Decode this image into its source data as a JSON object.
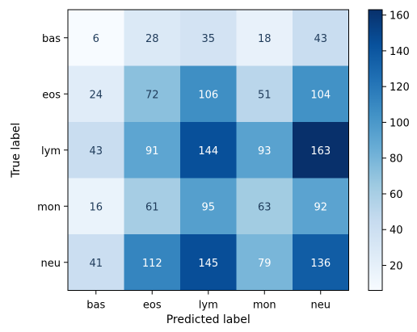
{
  "chart_data": {
    "type": "heatmap",
    "title": "",
    "xlabel": "Predicted label",
    "ylabel": "True label",
    "x_categories": [
      "bas",
      "eos",
      "lym",
      "mon",
      "neu"
    ],
    "y_categories": [
      "bas",
      "eos",
      "lym",
      "mon",
      "neu"
    ],
    "values": [
      [
        6,
        28,
        35,
        18,
        43
      ],
      [
        24,
        72,
        106,
        51,
        104
      ],
      [
        43,
        91,
        144,
        93,
        163
      ],
      [
        16,
        61,
        95,
        63,
        92
      ],
      [
        41,
        112,
        145,
        79,
        136
      ]
    ],
    "colormap": "Blues",
    "value_range": [
      6,
      163
    ],
    "colorbar": {
      "ticks": [
        20,
        40,
        60,
        80,
        100,
        120,
        140,
        160
      ],
      "tick_labels": [
        "20",
        "40",
        "60",
        "80",
        "100",
        "120",
        "140",
        "160"
      ]
    },
    "grid": false
  }
}
